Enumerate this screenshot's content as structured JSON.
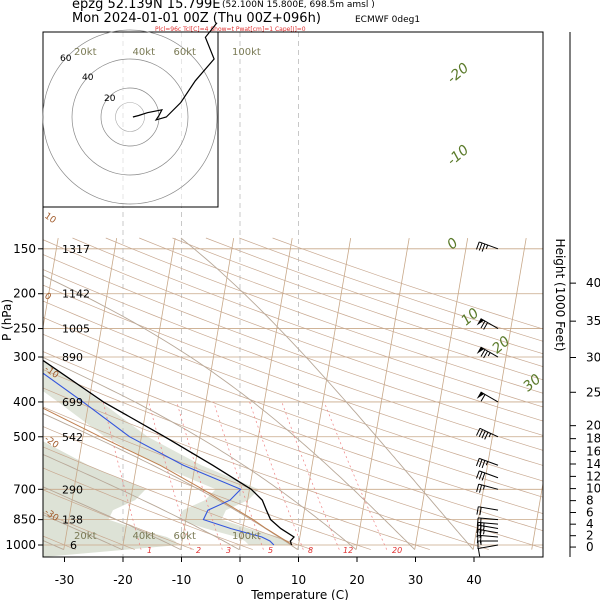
{
  "header": {
    "line1": "epzg 52.139N 15.799E",
    "line1_small": "(52.100N 15.800E, 698.5m amsl )",
    "line2": "Mon 2024-01-01 00Z (Thu 00Z+096h)",
    "model": "ECMWF 0deg1",
    "indices": "Plcl=96c Tcl[C]=4 Show=t Pwat[cm]=1 Cape[J]=0"
  },
  "colors": {
    "temperature": "#000000",
    "dewpoint": "#3355dd",
    "isotherm": "#c8a888",
    "dry_adiabat": "#c8a890",
    "moist_adiabat": "#b8a898",
    "mixing_ratio": "#f08080",
    "humidity_shading": "#dde2d6",
    "parcel": "#c08050"
  },
  "chart_data": {
    "type": "line",
    "title": "",
    "xlabel": "Temperature (C)",
    "ylabel": "P (hPa)",
    "y2label": "Height (1000 Feet)",
    "xlim": [
      -33,
      47
    ],
    "ylim": [
      1020,
      150
    ],
    "x_ticks": [
      -30,
      -20,
      -10,
      0,
      10,
      20,
      30,
      40
    ],
    "p_ticks": [
      150,
      200,
      250,
      300,
      400,
      500,
      700,
      850,
      1000
    ],
    "height_ticks": [
      0,
      2,
      4,
      6,
      8,
      10,
      12,
      14,
      16,
      18,
      20,
      25,
      30,
      35,
      40
    ],
    "level_heights_m": [
      {
        "p": 150,
        "z": "1317"
      },
      {
        "p": 200,
        "z": "1142"
      },
      {
        "p": 250,
        "z": "1005"
      },
      {
        "p": 300,
        "z": "890"
      },
      {
        "p": 400,
        "z": "699"
      },
      {
        "p": 500,
        "z": "542"
      },
      {
        "p": 700,
        "z": "290"
      },
      {
        "p": 850,
        "z": "138"
      },
      {
        "p": 1000,
        "z": "6"
      }
    ],
    "mixing_ratio_labels": [
      "1",
      "2",
      "3",
      "5",
      "8",
      "12",
      "20"
    ],
    "dry_adiabat_labels": [
      "10",
      "0",
      "-10",
      "-20",
      "-30"
    ],
    "moist_adiabat_labels": [
      "-20",
      "-10",
      "0",
      "10",
      "20",
      "30"
    ],
    "wind_speed_labels": [
      "20kt",
      "40kt",
      "60kt",
      "100kt"
    ],
    "hodograph_rings": [
      "20",
      "40",
      "60"
    ],
    "series": [
      {
        "name": "Temperature",
        "points": [
          {
            "p": 1000,
            "t": 8.8
          },
          {
            "p": 975,
            "t": 8.5
          },
          {
            "p": 950,
            "t": 9.0
          },
          {
            "p": 900,
            "t": 6.5
          },
          {
            "p": 850,
            "t": 4.5
          },
          {
            "p": 800,
            "t": 3.5
          },
          {
            "p": 750,
            "t": 2.5
          },
          {
            "p": 700,
            "t": 0.3
          },
          {
            "p": 600,
            "t": -7.0
          },
          {
            "p": 500,
            "t": -16.0
          },
          {
            "p": 400,
            "t": -27.5
          },
          {
            "p": 300,
            "t": -40.0
          },
          {
            "p": 250,
            "t": -48.5
          },
          {
            "p": 200,
            "t": -54.5
          },
          {
            "p": 150,
            "t": -59.0
          }
        ]
      },
      {
        "name": "Dewpoint",
        "points": [
          {
            "p": 1000,
            "t": 5.8
          },
          {
            "p": 975,
            "t": 5.0
          },
          {
            "p": 950,
            "t": 3.5
          },
          {
            "p": 900,
            "t": -2.0
          },
          {
            "p": 850,
            "t": -7.0
          },
          {
            "p": 800,
            "t": -6.5
          },
          {
            "p": 750,
            "t": -3.0
          },
          {
            "p": 700,
            "t": -1.5
          },
          {
            "p": 600,
            "t": -12.0
          },
          {
            "p": 500,
            "t": -22.0
          },
          {
            "p": 400,
            "t": -31.0
          },
          {
            "p": 300,
            "t": -43.0
          },
          {
            "p": 250,
            "t": -52.0
          },
          {
            "p": 200,
            "t": -59.0
          },
          {
            "p": 150,
            "t": -65.0
          }
        ]
      }
    ],
    "wind_barbs": [
      {
        "p": 1000,
        "dir": 260,
        "kt": 10
      },
      {
        "p": 975,
        "dir": 270,
        "kt": 15
      },
      {
        "p": 950,
        "dir": 275,
        "kt": 20
      },
      {
        "p": 925,
        "dir": 280,
        "kt": 25
      },
      {
        "p": 900,
        "dir": 280,
        "kt": 25
      },
      {
        "p": 875,
        "dir": 275,
        "kt": 25
      },
      {
        "p": 850,
        "dir": 275,
        "kt": 20
      },
      {
        "p": 800,
        "dir": 280,
        "kt": 20
      },
      {
        "p": 700,
        "dir": 285,
        "kt": 25
      },
      {
        "p": 650,
        "dir": 290,
        "kt": 30
      },
      {
        "p": 600,
        "dir": 290,
        "kt": 35
      },
      {
        "p": 500,
        "dir": 295,
        "kt": 45
      },
      {
        "p": 400,
        "dir": 300,
        "kt": 60
      },
      {
        "p": 300,
        "dir": 300,
        "kt": 75
      },
      {
        "p": 250,
        "dir": 300,
        "kt": 70
      },
      {
        "p": 150,
        "dir": 290,
        "kt": 35
      }
    ],
    "hodograph": [
      {
        "u": 2,
        "v": 0
      },
      {
        "u": 6,
        "v": 1
      },
      {
        "u": 12,
        "v": 3
      },
      {
        "u": 22,
        "v": 5
      },
      {
        "u": 20,
        "v": 1
      },
      {
        "u": 18,
        "v": -2
      },
      {
        "u": 25,
        "v": 0
      },
      {
        "u": 35,
        "v": 10
      },
      {
        "u": 45,
        "v": 25
      },
      {
        "u": 58,
        "v": 40
      },
      {
        "u": 52,
        "v": 55
      },
      {
        "u": 60,
        "v": 65
      }
    ]
  }
}
